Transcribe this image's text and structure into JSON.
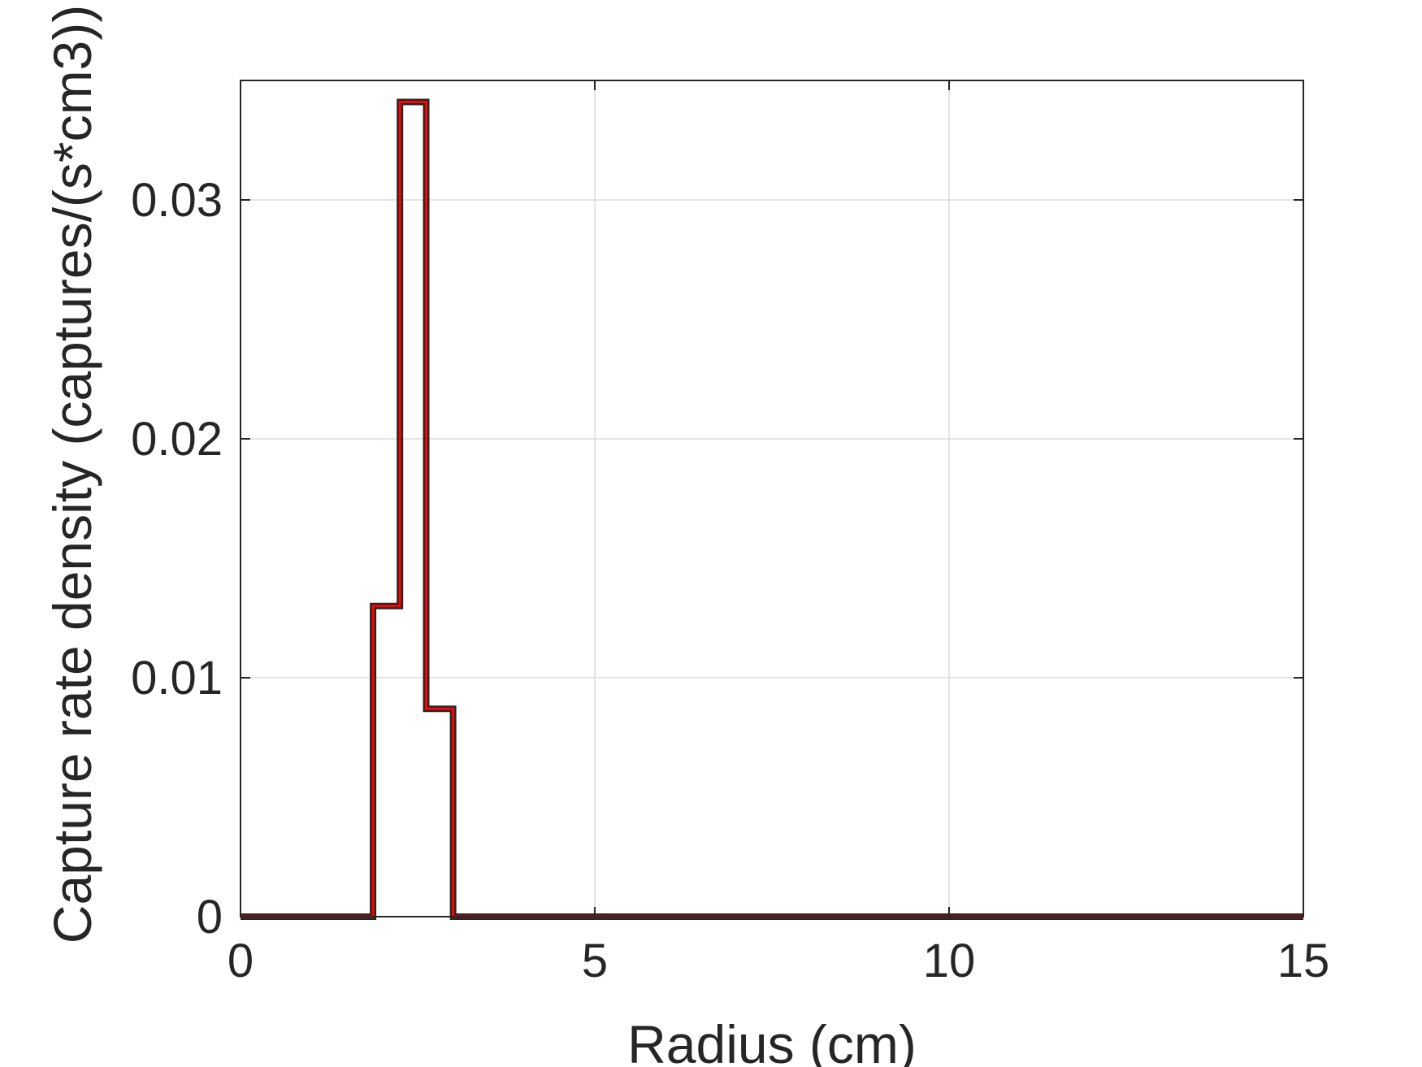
{
  "chart_data": {
    "type": "line",
    "step": true,
    "xlabel": "Radius (cm)",
    "ylabel": "Capture rate density (captures/(s*cm3))",
    "xlim": [
      0,
      15
    ],
    "ylim": [
      0,
      0.035
    ],
    "xticks": [
      0,
      5,
      10,
      15
    ],
    "xtick_labels": [
      "0",
      "5",
      "10",
      "15"
    ],
    "yticks": [
      0,
      0.01,
      0.02,
      0.03
    ],
    "ytick_labels": [
      "0",
      "0.01",
      "0.02",
      "0.03"
    ],
    "grid": true,
    "series": [
      {
        "color": "#ff0000",
        "outline_color": "#262626",
        "bin_edges": [
          0,
          1.87,
          2.25,
          2.62,
          3.0,
          15
        ],
        "values": [
          0,
          0.013,
          0.0341,
          0.0087,
          0
        ]
      }
    ]
  }
}
